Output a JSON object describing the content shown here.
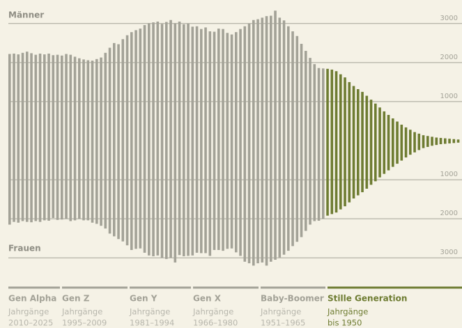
{
  "chart_data": {
    "type": "pyramid",
    "top_label": "Männer",
    "bottom_label": "Frauen",
    "ylim": [
      -3460,
      3460
    ],
    "yticks": [
      3000,
      2000,
      1000,
      {
        "value": -1000,
        "label": "1000"
      },
      {
        "value": -2000,
        "label": "2000"
      },
      {
        "value": -3000,
        "label": "3000"
      }
    ],
    "grid": true,
    "series": [
      {
        "color": "#a3a297",
        "values": [
          2220,
          2230,
          2210,
          2250,
          2280,
          2240,
          2200,
          2230,
          2210,
          2230,
          2190,
          2200,
          2180,
          2220,
          2200,
          2150,
          2110,
          2080,
          2060,
          2050,
          2090,
          2130,
          2250,
          2380,
          2500,
          2470,
          2600,
          2700,
          2780,
          2830,
          2870,
          2960,
          3010,
          3030,
          3050,
          2990,
          3040,
          3090,
          3010,
          3050,
          2980,
          3000,
          2920,
          2930,
          2860,
          2900,
          2800,
          2790,
          2870,
          2860,
          2760,
          2720,
          2780,
          2860,
          2930,
          3000,
          3090,
          3110,
          3150,
          3190,
          3200,
          3330,
          3150,
          3080,
          2930,
          2800,
          2680,
          2480,
          2300,
          2120,
          1960,
          1860,
          1850
        ]
      },
      {
        "color": "#6e7c32",
        "values": [
          1840,
          1820,
          1780,
          1700,
          1620,
          1500,
          1400,
          1320,
          1250,
          1150,
          1050,
          950,
          850,
          750,
          660,
          570,
          490,
          410,
          340,
          280,
          220,
          180,
          140,
          120,
          100,
          80,
          70,
          60,
          50,
          40,
          30
        ]
      },
      {
        "color": "#a3a297",
        "values": [
          -2150,
          -2080,
          -2100,
          -2060,
          -2080,
          -2090,
          -2060,
          -2080,
          -2040,
          -2050,
          -1980,
          -2030,
          -2020,
          -2000,
          -2060,
          -2040,
          -2000,
          -2040,
          -2040,
          -2100,
          -2130,
          -2180,
          -2250,
          -2380,
          -2450,
          -2520,
          -2580,
          -2680,
          -2800,
          -2770,
          -2760,
          -2870,
          -2940,
          -2960,
          -2940,
          -3000,
          -3030,
          -3000,
          -3120,
          -2930,
          -2960,
          -2950,
          -2940,
          -2870,
          -2880,
          -2880,
          -2950,
          -2800,
          -2800,
          -2820,
          -2770,
          -2760,
          -2860,
          -2950,
          -3100,
          -3140,
          -3200,
          -3140,
          -3120,
          -3200,
          -3100,
          -3050,
          -2990,
          -2920,
          -2820,
          -2700,
          -2590,
          -2470,
          -2310,
          -2150,
          -2060,
          -2050,
          -2000
        ]
      },
      {
        "color": "#6e7c32",
        "values": [
          -1920,
          -1880,
          -1840,
          -1760,
          -1680,
          -1580,
          -1480,
          -1400,
          -1320,
          -1230,
          -1130,
          -1040,
          -940,
          -850,
          -760,
          -670,
          -590,
          -510,
          -430,
          -360,
          -300,
          -240,
          -190,
          -160,
          -130,
          -110,
          -90,
          -80,
          -70,
          -60,
          -50
        ]
      }
    ],
    "generations": [
      {
        "name": "Gen Alpha",
        "label": "Jahrgänge",
        "years": "2010–2025",
        "color": "#a3a297"
      },
      {
        "name": "Gen Z",
        "label": "Jahrgänge",
        "years": "1995–2009",
        "color": "#a3a297"
      },
      {
        "name": "Gen Y",
        "label": "Jahrgänge",
        "years": "1981–1994",
        "color": "#a3a297"
      },
      {
        "name": "Gen X",
        "label": "Jahrgänge",
        "years": "1966–1980",
        "color": "#a3a297"
      },
      {
        "name": "Baby-Boomer",
        "label": "Jahrgänge",
        "years": "1951–1965",
        "color": "#a3a297"
      },
      {
        "name": "Stille Generation",
        "label": "Jahrgänge",
        "years": "bis 1950",
        "color": "#6e7c32"
      }
    ]
  }
}
